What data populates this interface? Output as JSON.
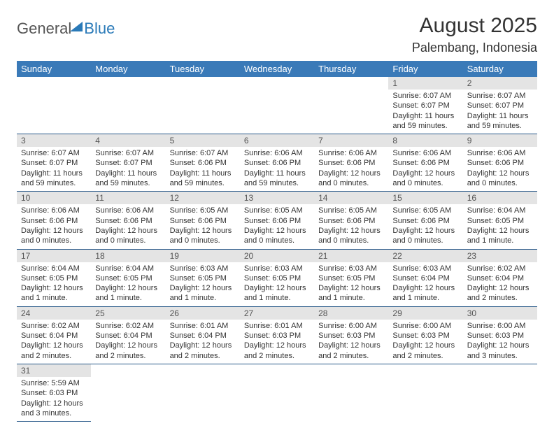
{
  "logo": {
    "general": "General",
    "blue": "Blue"
  },
  "title": {
    "month": "August 2025",
    "location": "Palembang, Indonesia"
  },
  "colors": {
    "header_bg": "#3a7ab8",
    "daynum_bg": "#e4e4e4",
    "border": "#2a5a8a"
  },
  "weekdays": [
    "Sunday",
    "Monday",
    "Tuesday",
    "Wednesday",
    "Thursday",
    "Friday",
    "Saturday"
  ],
  "weeks": [
    [
      {
        "n": "",
        "sr": "",
        "ss": "",
        "dl": ""
      },
      {
        "n": "",
        "sr": "",
        "ss": "",
        "dl": ""
      },
      {
        "n": "",
        "sr": "",
        "ss": "",
        "dl": ""
      },
      {
        "n": "",
        "sr": "",
        "ss": "",
        "dl": ""
      },
      {
        "n": "",
        "sr": "",
        "ss": "",
        "dl": ""
      },
      {
        "n": "1",
        "sr": "Sunrise: 6:07 AM",
        "ss": "Sunset: 6:07 PM",
        "dl": "Daylight: 11 hours and 59 minutes."
      },
      {
        "n": "2",
        "sr": "Sunrise: 6:07 AM",
        "ss": "Sunset: 6:07 PM",
        "dl": "Daylight: 11 hours and 59 minutes."
      }
    ],
    [
      {
        "n": "3",
        "sr": "Sunrise: 6:07 AM",
        "ss": "Sunset: 6:07 PM",
        "dl": "Daylight: 11 hours and 59 minutes."
      },
      {
        "n": "4",
        "sr": "Sunrise: 6:07 AM",
        "ss": "Sunset: 6:07 PM",
        "dl": "Daylight: 11 hours and 59 minutes."
      },
      {
        "n": "5",
        "sr": "Sunrise: 6:07 AM",
        "ss": "Sunset: 6:06 PM",
        "dl": "Daylight: 11 hours and 59 minutes."
      },
      {
        "n": "6",
        "sr": "Sunrise: 6:06 AM",
        "ss": "Sunset: 6:06 PM",
        "dl": "Daylight: 11 hours and 59 minutes."
      },
      {
        "n": "7",
        "sr": "Sunrise: 6:06 AM",
        "ss": "Sunset: 6:06 PM",
        "dl": "Daylight: 12 hours and 0 minutes."
      },
      {
        "n": "8",
        "sr": "Sunrise: 6:06 AM",
        "ss": "Sunset: 6:06 PM",
        "dl": "Daylight: 12 hours and 0 minutes."
      },
      {
        "n": "9",
        "sr": "Sunrise: 6:06 AM",
        "ss": "Sunset: 6:06 PM",
        "dl": "Daylight: 12 hours and 0 minutes."
      }
    ],
    [
      {
        "n": "10",
        "sr": "Sunrise: 6:06 AM",
        "ss": "Sunset: 6:06 PM",
        "dl": "Daylight: 12 hours and 0 minutes."
      },
      {
        "n": "11",
        "sr": "Sunrise: 6:06 AM",
        "ss": "Sunset: 6:06 PM",
        "dl": "Daylight: 12 hours and 0 minutes."
      },
      {
        "n": "12",
        "sr": "Sunrise: 6:05 AM",
        "ss": "Sunset: 6:06 PM",
        "dl": "Daylight: 12 hours and 0 minutes."
      },
      {
        "n": "13",
        "sr": "Sunrise: 6:05 AM",
        "ss": "Sunset: 6:06 PM",
        "dl": "Daylight: 12 hours and 0 minutes."
      },
      {
        "n": "14",
        "sr": "Sunrise: 6:05 AM",
        "ss": "Sunset: 6:06 PM",
        "dl": "Daylight: 12 hours and 0 minutes."
      },
      {
        "n": "15",
        "sr": "Sunrise: 6:05 AM",
        "ss": "Sunset: 6:06 PM",
        "dl": "Daylight: 12 hours and 0 minutes."
      },
      {
        "n": "16",
        "sr": "Sunrise: 6:04 AM",
        "ss": "Sunset: 6:05 PM",
        "dl": "Daylight: 12 hours and 1 minute."
      }
    ],
    [
      {
        "n": "17",
        "sr": "Sunrise: 6:04 AM",
        "ss": "Sunset: 6:05 PM",
        "dl": "Daylight: 12 hours and 1 minute."
      },
      {
        "n": "18",
        "sr": "Sunrise: 6:04 AM",
        "ss": "Sunset: 6:05 PM",
        "dl": "Daylight: 12 hours and 1 minute."
      },
      {
        "n": "19",
        "sr": "Sunrise: 6:03 AM",
        "ss": "Sunset: 6:05 PM",
        "dl": "Daylight: 12 hours and 1 minute."
      },
      {
        "n": "20",
        "sr": "Sunrise: 6:03 AM",
        "ss": "Sunset: 6:05 PM",
        "dl": "Daylight: 12 hours and 1 minute."
      },
      {
        "n": "21",
        "sr": "Sunrise: 6:03 AM",
        "ss": "Sunset: 6:05 PM",
        "dl": "Daylight: 12 hours and 1 minute."
      },
      {
        "n": "22",
        "sr": "Sunrise: 6:03 AM",
        "ss": "Sunset: 6:04 PM",
        "dl": "Daylight: 12 hours and 1 minute."
      },
      {
        "n": "23",
        "sr": "Sunrise: 6:02 AM",
        "ss": "Sunset: 6:04 PM",
        "dl": "Daylight: 12 hours and 2 minutes."
      }
    ],
    [
      {
        "n": "24",
        "sr": "Sunrise: 6:02 AM",
        "ss": "Sunset: 6:04 PM",
        "dl": "Daylight: 12 hours and 2 minutes."
      },
      {
        "n": "25",
        "sr": "Sunrise: 6:02 AM",
        "ss": "Sunset: 6:04 PM",
        "dl": "Daylight: 12 hours and 2 minutes."
      },
      {
        "n": "26",
        "sr": "Sunrise: 6:01 AM",
        "ss": "Sunset: 6:04 PM",
        "dl": "Daylight: 12 hours and 2 minutes."
      },
      {
        "n": "27",
        "sr": "Sunrise: 6:01 AM",
        "ss": "Sunset: 6:03 PM",
        "dl": "Daylight: 12 hours and 2 minutes."
      },
      {
        "n": "28",
        "sr": "Sunrise: 6:00 AM",
        "ss": "Sunset: 6:03 PM",
        "dl": "Daylight: 12 hours and 2 minutes."
      },
      {
        "n": "29",
        "sr": "Sunrise: 6:00 AM",
        "ss": "Sunset: 6:03 PM",
        "dl": "Daylight: 12 hours and 2 minutes."
      },
      {
        "n": "30",
        "sr": "Sunrise: 6:00 AM",
        "ss": "Sunset: 6:03 PM",
        "dl": "Daylight: 12 hours and 3 minutes."
      }
    ],
    [
      {
        "n": "31",
        "sr": "Sunrise: 5:59 AM",
        "ss": "Sunset: 6:03 PM",
        "dl": "Daylight: 12 hours and 3 minutes."
      },
      {
        "n": "",
        "sr": "",
        "ss": "",
        "dl": ""
      },
      {
        "n": "",
        "sr": "",
        "ss": "",
        "dl": ""
      },
      {
        "n": "",
        "sr": "",
        "ss": "",
        "dl": ""
      },
      {
        "n": "",
        "sr": "",
        "ss": "",
        "dl": ""
      },
      {
        "n": "",
        "sr": "",
        "ss": "",
        "dl": ""
      },
      {
        "n": "",
        "sr": "",
        "ss": "",
        "dl": ""
      }
    ]
  ]
}
